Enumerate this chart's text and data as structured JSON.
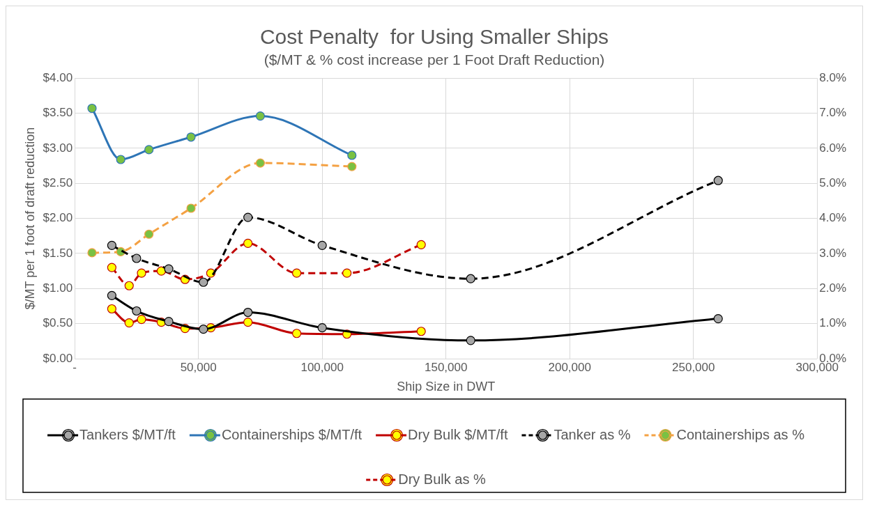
{
  "chart_data": {
    "type": "line",
    "title": "Cost Penalty  for Using Smaller Ships",
    "subtitle": "($/MT & % cost increase per 1 Foot Draft Reduction)",
    "xlabel": "Ship Size in DWT",
    "ylabel": "$/MT per 1 foot of draft reduction",
    "xlim": [
      0,
      300000
    ],
    "xticks": [
      {
        "value": 0,
        "label": "-"
      },
      {
        "value": 50000,
        "label": "50,000"
      },
      {
        "value": 100000,
        "label": "100,000"
      },
      {
        "value": 150000,
        "label": "150,000"
      },
      {
        "value": 200000,
        "label": "200,000"
      },
      {
        "value": 250000,
        "label": "250,000"
      },
      {
        "value": 300000,
        "label": "300,000"
      }
    ],
    "ylim": [
      0,
      4
    ],
    "yticks": [
      {
        "value": 0,
        "label": "$0.00"
      },
      {
        "value": 0.5,
        "label": "$0.50"
      },
      {
        "value": 1,
        "label": "$1.00"
      },
      {
        "value": 1.5,
        "label": "$1.50"
      },
      {
        "value": 2,
        "label": "$2.00"
      },
      {
        "value": 2.5,
        "label": "$2.50"
      },
      {
        "value": 3,
        "label": "$3.00"
      },
      {
        "value": 3.5,
        "label": "$3.50"
      },
      {
        "value": 4,
        "label": "$4.00"
      }
    ],
    "y2lim": [
      0,
      8
    ],
    "y2ticks": [
      {
        "value": 0,
        "label": "0.0%"
      },
      {
        "value": 1,
        "label": "1.0%"
      },
      {
        "value": 2,
        "label": "2.0%"
      },
      {
        "value": 3,
        "label": "3.0%"
      },
      {
        "value": 4,
        "label": "4.0%"
      },
      {
        "value": 5,
        "label": "5.0%"
      },
      {
        "value": 6,
        "label": "6.0%"
      },
      {
        "value": 7,
        "label": "7.0%"
      },
      {
        "value": 8,
        "label": "8.0%"
      }
    ],
    "grid": true,
    "legend": "bottom",
    "marker": "circle",
    "series": [
      {
        "name": "Tankers $/MT/ft",
        "type": "line",
        "line_style": "solid",
        "color": "#000000",
        "colors": [
          "#a6a6a6",
          "#a6a6a6",
          "#a6a6a6",
          "#a6a6a6",
          "#a6a6a6",
          "#a6a6a6",
          "#a6a6a6",
          "#a6a6a6"
        ],
        "x": [
          15000,
          25000,
          38000,
          52000,
          70000,
          100000,
          160000,
          260000
        ],
        "values": [
          0.9,
          0.68,
          0.53,
          0.42,
          0.66,
          0.44,
          0.26,
          0.57
        ]
      },
      {
        "name": "Containerships $/MT/ft",
        "type": "line",
        "line_style": "solid",
        "color": "#2e75b6",
        "colors": [
          "#7ac143",
          "#7ac143",
          "#7ac143",
          "#7ac143",
          "#7ac143",
          "#7ac143"
        ],
        "x": [
          7000,
          18600,
          30000,
          47000,
          75000,
          112000
        ],
        "values": [
          3.57,
          2.84,
          2.98,
          3.16,
          3.46,
          2.9
        ]
      },
      {
        "name": "Dry Bulk $/MT/ft",
        "type": "line",
        "line_style": "solid",
        "color": "#c00000",
        "colors": [
          "#ffff00",
          "#ffff00",
          "#ffff00",
          "#ffff00",
          "#ffff00",
          "#ffff00",
          "#ffff00",
          "#ffff00",
          "#ffff00",
          "#ffff00"
        ],
        "x": [
          15000,
          22000,
          27000,
          35000,
          44600,
          55000,
          70000,
          89700,
          110000,
          140000
        ],
        "values": [
          0.71,
          0.51,
          0.56,
          0.52,
          0.43,
          0.44,
          0.52,
          0.36,
          0.35,
          0.39
        ]
      },
      {
        "name": "Tanker as %",
        "type": "line",
        "line_style": "dashed",
        "axis": "y2",
        "color": "#000000",
        "colors": [
          "#a6a6a6",
          "#a6a6a6",
          "#a6a6a6",
          "#a6a6a6",
          "#a6a6a6",
          "#a6a6a6",
          "#a6a6a6",
          "#a6a6a6"
        ],
        "x": [
          15000,
          25000,
          38000,
          52000,
          70000,
          100000,
          160000,
          260000
        ],
        "values": [
          3.23,
          2.86,
          2.56,
          2.18,
          4.03,
          3.23,
          2.28,
          5.08
        ]
      },
      {
        "name": "Containerships as %",
        "type": "line",
        "line_style": "dashed",
        "axis": "y2",
        "color": "#f4a143",
        "colors": [
          "#7ac143",
          "#7ac143",
          "#7ac143",
          "#7ac143",
          "#7ac143",
          "#7ac143"
        ],
        "x": [
          7000,
          18600,
          30000,
          47000,
          75000,
          112000
        ],
        "values": [
          3.02,
          3.05,
          3.55,
          4.29,
          5.58,
          5.48
        ]
      },
      {
        "name": "Dry Bulk as %",
        "type": "line",
        "line_style": "dashed",
        "axis": "y2",
        "color": "#c00000",
        "colors": [
          "#ffff00",
          "#ffff00",
          "#ffff00",
          "#ffff00",
          "#ffff00",
          "#ffff00",
          "#ffff00",
          "#ffff00",
          "#ffff00",
          "#ffff00"
        ],
        "x": [
          15000,
          22000,
          27000,
          35000,
          44600,
          55000,
          70000,
          89700,
          110000,
          140000
        ],
        "values": [
          2.6,
          2.08,
          2.44,
          2.5,
          2.26,
          2.44,
          3.29,
          2.44,
          2.44,
          3.25
        ]
      }
    ]
  }
}
